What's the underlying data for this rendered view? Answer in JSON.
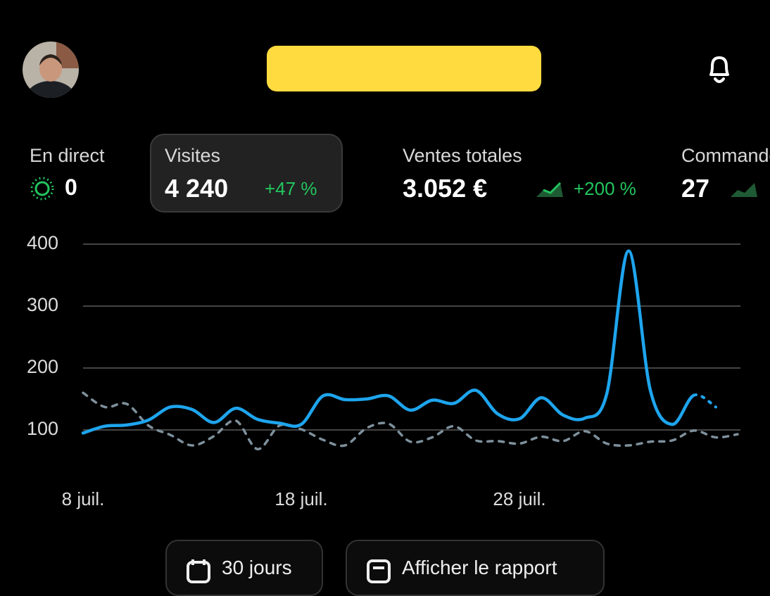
{
  "stats": [
    {
      "label": "En direct",
      "value": "0"
    },
    {
      "label": "Visites",
      "value": "4 240",
      "change": "+47 %"
    },
    {
      "label": "Ventes totales",
      "value": "3.052 €",
      "change": "+200 %"
    },
    {
      "label": "Commandes",
      "value": "27"
    }
  ],
  "chart_data": {
    "type": "line",
    "categories": [
      "8 juil.",
      null,
      null,
      null,
      null,
      null,
      null,
      null,
      null,
      null,
      "18 juil.",
      null,
      null,
      null,
      null,
      null,
      null,
      null,
      null,
      null,
      "28 juil.",
      null,
      null,
      null,
      null,
      null,
      null,
      null,
      null,
      null,
      null
    ],
    "series": [
      {
        "color": "#1ea5ee",
        "values": [
          95,
          106,
          108,
          116,
          137,
          133,
          112,
          135,
          117,
          111,
          109,
          155,
          149,
          150,
          155,
          132,
          148,
          143,
          164,
          126,
          118,
          152,
          124,
          119,
          158,
          389,
          164,
          109,
          156,
          137,
          null
        ]
      },
      {
        "color": "#7e909c",
        "dashed": true,
        "values": [
          160,
          137,
          142,
          107,
          92,
          75,
          90,
          115,
          69,
          107,
          101,
          84,
          75,
          103,
          110,
          81,
          88,
          106,
          83,
          82,
          78,
          89,
          82,
          98,
          78,
          75,
          81,
          83,
          99,
          88,
          93
        ]
      }
    ],
    "ylim": [
      0,
      400
    ],
    "yticks": [
      100,
      200,
      300,
      400
    ],
    "grid": true
  },
  "buttons": [
    "30 jours",
    "Afficher le rapport"
  ]
}
